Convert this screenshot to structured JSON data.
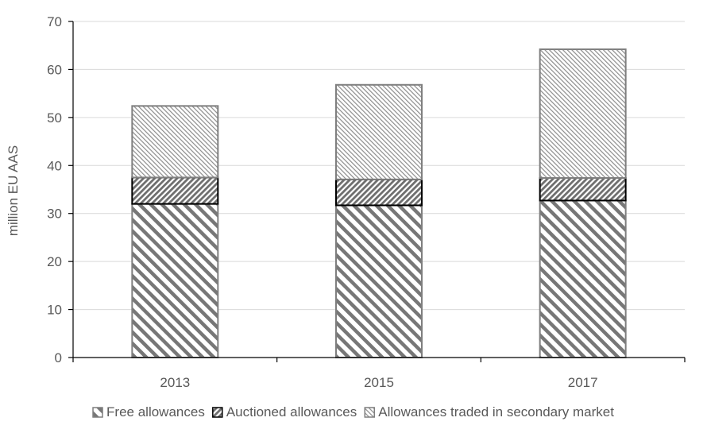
{
  "chart_data": {
    "type": "bar",
    "stacked": true,
    "categories": [
      "2013",
      "2015",
      "2017"
    ],
    "series": [
      {
        "name": "Free allowances",
        "values": [
          32.0,
          31.7,
          32.7
        ],
        "pattern": "wide-diagonal-hatch"
      },
      {
        "name": "Auctioned allowances",
        "values": [
          5.5,
          5.4,
          4.7
        ],
        "pattern": "dense-diagonal-hatch"
      },
      {
        "name": "Allowances traded in secondary market",
        "values": [
          14.9,
          19.7,
          26.8
        ],
        "pattern": "light-diagonal-hatch"
      }
    ],
    "title": "",
    "xlabel": "",
    "ylabel": "million EU AAS",
    "ylim": [
      0,
      70
    ],
    "yticks": [
      0,
      10,
      20,
      30,
      40,
      50,
      60,
      70
    ],
    "grid": true,
    "legend_position": "bottom",
    "colors": {
      "hatch": "#777777",
      "edge_free": "#7f7f7f",
      "edge_auctioned": "#000000",
      "edge_secondary": "#7f7f7f",
      "gridline": "#d9d9d9",
      "axis": "#000000",
      "text": "#595959"
    }
  }
}
